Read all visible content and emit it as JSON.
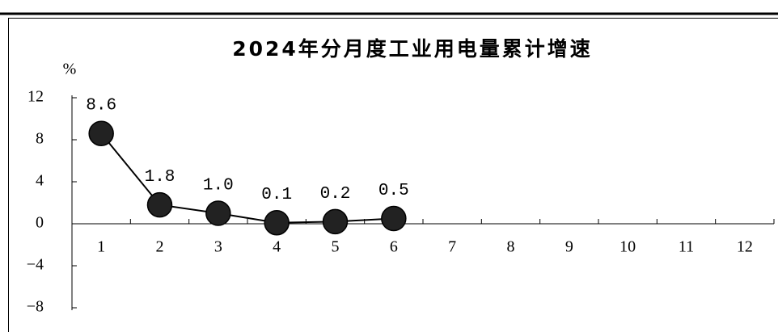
{
  "chart_data": {
    "type": "line",
    "title": "2024年分月度工业用电量累计增速",
    "ylabel": "%",
    "categories": [
      "1",
      "2",
      "3",
      "4",
      "5",
      "6",
      "7",
      "8",
      "9",
      "10",
      "11",
      "12"
    ],
    "values": [
      8.6,
      1.8,
      1.0,
      0.1,
      0.2,
      0.5,
      null,
      null,
      null,
      null,
      null,
      null
    ],
    "value_labels": [
      "8.6",
      "1.8",
      "1.0",
      "0.1",
      "0.2",
      "0.5",
      null,
      null,
      null,
      null,
      null,
      null
    ],
    "color": "#222222",
    "ylim": [
      -8,
      12
    ],
    "yticks": [
      {
        "value": -8,
        "label": "−8"
      },
      {
        "value": -4,
        "label": "−4"
      },
      0,
      4,
      8,
      12
    ]
  }
}
